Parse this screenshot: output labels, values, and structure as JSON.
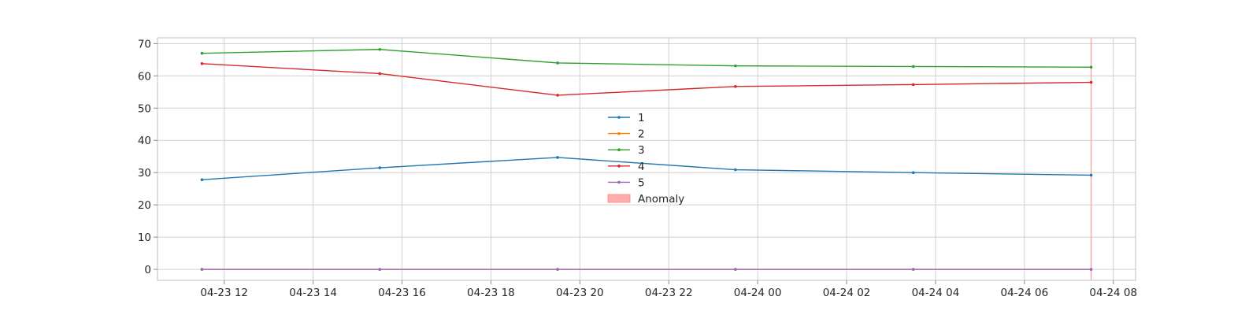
{
  "chart_data": {
    "type": "line",
    "title": "",
    "xlabel": "",
    "ylabel": "",
    "x": [
      "2024-04-23 11:30",
      "2024-04-23 15:30",
      "2024-04-23 19:30",
      "2024-04-23 23:30",
      "2024-04-24 03:30",
      "2024-04-24 07:30"
    ],
    "x_range": [
      "2024-04-23 10:30",
      "2024-04-24 08:30"
    ],
    "ylim": [
      -3.4,
      71.8
    ],
    "x_ticks": [
      {
        "value": "2024-04-23 12:00",
        "label": "04-23 12"
      },
      {
        "value": "2024-04-23 14:00",
        "label": "04-23 14"
      },
      {
        "value": "2024-04-23 16:00",
        "label": "04-23 16"
      },
      {
        "value": "2024-04-23 18:00",
        "label": "04-23 18"
      },
      {
        "value": "2024-04-23 20:00",
        "label": "04-23 20"
      },
      {
        "value": "2024-04-23 22:00",
        "label": "04-23 22"
      },
      {
        "value": "2024-04-24 00:00",
        "label": "04-24 00"
      },
      {
        "value": "2024-04-24 02:00",
        "label": "04-24 02"
      },
      {
        "value": "2024-04-24 04:00",
        "label": "04-24 04"
      },
      {
        "value": "2024-04-24 06:00",
        "label": "04-24 06"
      },
      {
        "value": "2024-04-24 08:00",
        "label": "04-24 08"
      }
    ],
    "y_ticks": [
      0,
      10,
      20,
      30,
      40,
      50,
      60,
      70
    ],
    "grid": true,
    "legend_position": "center",
    "series": [
      {
        "name": "1",
        "color": "#1f77b4",
        "values": [
          27.8,
          31.5,
          34.7,
          30.9,
          30.0,
          29.2
        ]
      },
      {
        "name": "2",
        "color": "#ff7f0e",
        "values": [
          0,
          0,
          0,
          0,
          0,
          0
        ]
      },
      {
        "name": "3",
        "color": "#2ca02c",
        "values": [
          67.0,
          68.2,
          64.0,
          63.1,
          62.9,
          62.7
        ]
      },
      {
        "name": "4",
        "color": "#d62728",
        "values": [
          63.8,
          60.7,
          54.0,
          56.7,
          57.3,
          58.0
        ]
      },
      {
        "name": "5",
        "color": "#9467bd",
        "values": [
          0,
          0,
          0,
          0,
          0,
          0
        ]
      }
    ],
    "anomaly": {
      "name": "Anomaly",
      "color": "#ff9999",
      "at": "2024-04-24 07:30"
    }
  }
}
